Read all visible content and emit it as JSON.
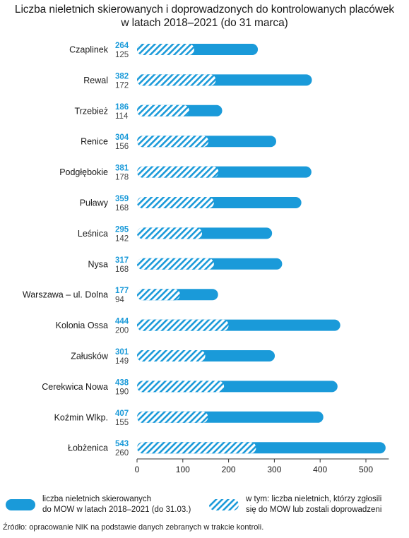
{
  "chart_data": {
    "type": "bar",
    "orientation": "horizontal",
    "title_lines": [
      "Liczba nieletnich skierowanych i doprowadzonych do kontrolowanych placówek",
      "w latach 2018–2021 (do 31 marca)"
    ],
    "categories": [
      "Czaplinek",
      "Rewal",
      "Trzebież",
      "Renice",
      "Podgłębokie",
      "Puławy",
      "Leśnica",
      "Nysa",
      "Warszawa – ul. Dolna",
      "Kolonia Ossa",
      "Załusków",
      "Cerekwica Nowa",
      "Koźmin Wlkp.",
      "Łobżenica"
    ],
    "series": [
      {
        "name": "liczba nieletnich skierowanych do MOW w latach 2018–2021 (do 31.03.)",
        "name_lines": [
          "liczba nieletnich skierowanych",
          "do MOW w latach 2018–2021 (do 31.03.)"
        ],
        "style": "solid",
        "color": "#1a9ad9",
        "values": [
          264,
          382,
          186,
          304,
          381,
          359,
          295,
          317,
          177,
          444,
          301,
          438,
          407,
          543
        ]
      },
      {
        "name": "w tym: liczba nieletnich, którzy zgłosili się do MOW lub zostali doprowadzeni",
        "name_lines": [
          "w tym: liczba nieletnich, którzy zgłosili",
          "się do MOW lub zostali doprowadzeni"
        ],
        "style": "hatched",
        "color": "#1a9ad9",
        "values": [
          125,
          172,
          114,
          156,
          178,
          168,
          142,
          168,
          94,
          200,
          149,
          190,
          155,
          260
        ]
      }
    ],
    "xlim": [
      0,
      550
    ],
    "xticks": [
      0,
      100,
      200,
      300,
      400,
      500
    ],
    "grid": false,
    "legend_position": "bottom"
  },
  "source": "Źródło: opracowanie NIK na podstawie danych zebranych w trakcie kontroli."
}
